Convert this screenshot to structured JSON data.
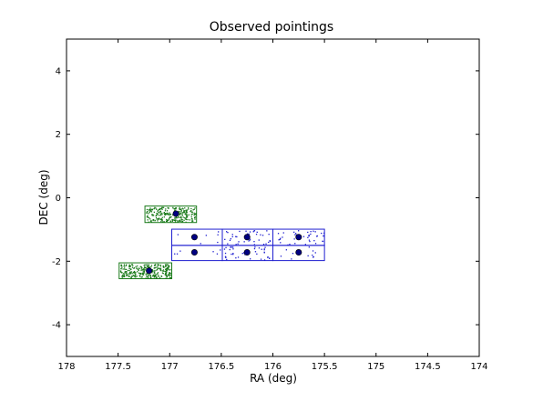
{
  "chart_data": {
    "type": "scatter",
    "title": "Observed pointings",
    "xlabel": "RA (deg)",
    "ylabel": "DEC (deg)",
    "xlim": [
      178,
      174
    ],
    "ylim": [
      -5,
      5
    ],
    "x_ticks": [
      178,
      177.5,
      177,
      176.5,
      176,
      175.5,
      175,
      174.5,
      174
    ],
    "x_tick_labels": [
      "178",
      "177.5",
      "177",
      "176.5",
      "176",
      "175.5",
      "175",
      "174.5",
      "174"
    ],
    "y_ticks": [
      -4,
      -2,
      0,
      2,
      4
    ],
    "y_tick_labels": [
      "-4",
      "-2",
      "0",
      "2",
      "4"
    ],
    "grid": false,
    "colors": {
      "green": "#1a7a1a",
      "blue": "#1f1fd0",
      "center": "#000080"
    },
    "pointings": [
      {
        "group": "green",
        "ra_min": 176.74,
        "ra_max": 177.24,
        "dec_min": -0.78,
        "dec_max": -0.26,
        "centers": [
          [
            176.94,
            -0.5
          ]
        ],
        "density": 260
      },
      {
        "group": "green",
        "ra_min": 176.98,
        "ra_max": 177.49,
        "dec_min": -2.55,
        "dec_max": -2.05,
        "centers": [
          [
            177.2,
            -2.3
          ]
        ],
        "density": 300
      },
      {
        "group": "blue",
        "ra_min": 176.49,
        "ra_max": 176.98,
        "dec_min": -1.5,
        "dec_max": -0.99,
        "centers": [
          [
            176.76,
            -1.24
          ]
        ],
        "density": 6
      },
      {
        "group": "blue",
        "ra_min": 176.49,
        "ra_max": 176.98,
        "dec_min": -1.98,
        "dec_max": -1.5,
        "centers": [
          [
            176.76,
            -1.72
          ]
        ],
        "density": 6
      },
      {
        "group": "blue",
        "ra_min": 176.0,
        "ra_max": 176.49,
        "dec_min": -1.5,
        "dec_max": -0.99,
        "centers": [
          [
            176.25,
            -1.24
          ]
        ],
        "density": 40
      },
      {
        "group": "blue",
        "ra_min": 176.0,
        "ra_max": 176.49,
        "dec_min": -1.98,
        "dec_max": -1.5,
        "centers": [
          [
            176.25,
            -1.72
          ]
        ],
        "density": 40
      },
      {
        "group": "blue",
        "ra_min": 175.5,
        "ra_max": 176.0,
        "dec_min": -1.5,
        "dec_max": -0.99,
        "centers": [
          [
            175.75,
            -1.24
          ]
        ],
        "density": 40
      },
      {
        "group": "blue",
        "ra_min": 175.5,
        "ra_max": 176.0,
        "dec_min": -1.98,
        "dec_max": -1.5,
        "centers": [
          [
            175.75,
            -1.72
          ]
        ],
        "density": 12
      }
    ]
  }
}
